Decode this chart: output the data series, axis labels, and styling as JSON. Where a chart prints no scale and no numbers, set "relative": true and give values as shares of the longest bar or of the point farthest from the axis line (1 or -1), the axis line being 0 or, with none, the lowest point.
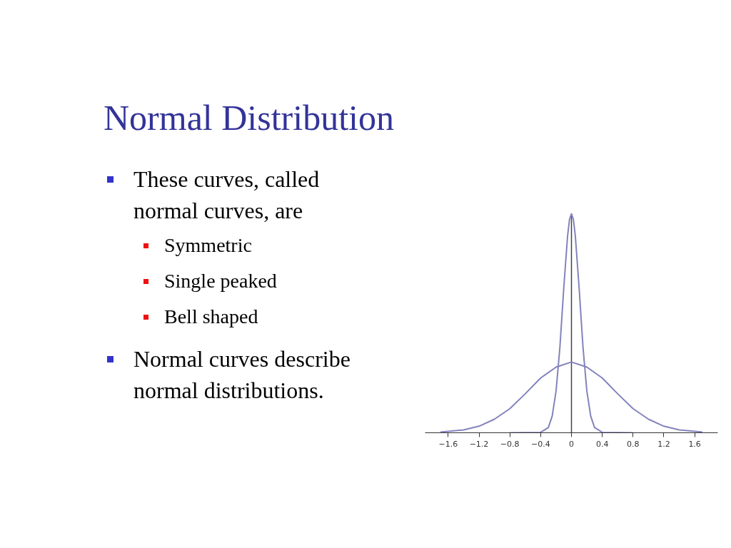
{
  "chart_data": {
    "type": "line",
    "title": "Normal Distribution",
    "annotations": [
      "These curves, called normal curves, are",
      "Symmetric",
      "Single peaked",
      "Bell shaped",
      "Normal curves describe normal distributions."
    ],
    "relative": true,
    "series": [
      {
        "color": "#8383bd",
        "x": [
          -0.8,
          -0.4,
          -0.3,
          -0.25,
          -0.2,
          -0.15,
          -0.1,
          -0.05,
          -0.025,
          0,
          0.025,
          0.05,
          0.1,
          0.15,
          0.2,
          0.25,
          0.3,
          0.4,
          0.8
        ],
        "values": [
          0,
          0.002,
          0.024,
          0.076,
          0.19,
          0.39,
          0.66,
          0.9,
          0.975,
          1,
          0.975,
          0.9,
          0.66,
          0.39,
          0.19,
          0.076,
          0.024,
          0.002,
          0
        ]
      },
      {
        "color": "#8383bd",
        "x": [
          -1.7,
          -1.4,
          -1.2,
          -1.0,
          -0.8,
          -0.6,
          -0.4,
          -0.2,
          0,
          0.2,
          0.4,
          0.6,
          0.8,
          1.0,
          1.2,
          1.4,
          1.7
        ],
        "values": [
          0.003,
          0.013,
          0.03,
          0.062,
          0.11,
          0.178,
          0.25,
          0.3,
          0.323,
          0.3,
          0.25,
          0.178,
          0.11,
          0.062,
          0.03,
          0.013,
          0.003
        ]
      }
    ],
    "xlim": [
      -1.9,
      1.9
    ],
    "xticks": [
      {
        "value": -1.6,
        "label": "−1.6"
      },
      {
        "value": -1.2,
        "label": "−1.2"
      },
      {
        "value": -0.8,
        "label": "−0.8"
      },
      {
        "value": -0.4,
        "label": "−0.4"
      },
      0,
      0.4,
      0.8,
      1.2,
      1.6
    ],
    "ref_lines": [
      {
        "axis": "x",
        "value": 0,
        "color": "#444444"
      }
    ]
  }
}
